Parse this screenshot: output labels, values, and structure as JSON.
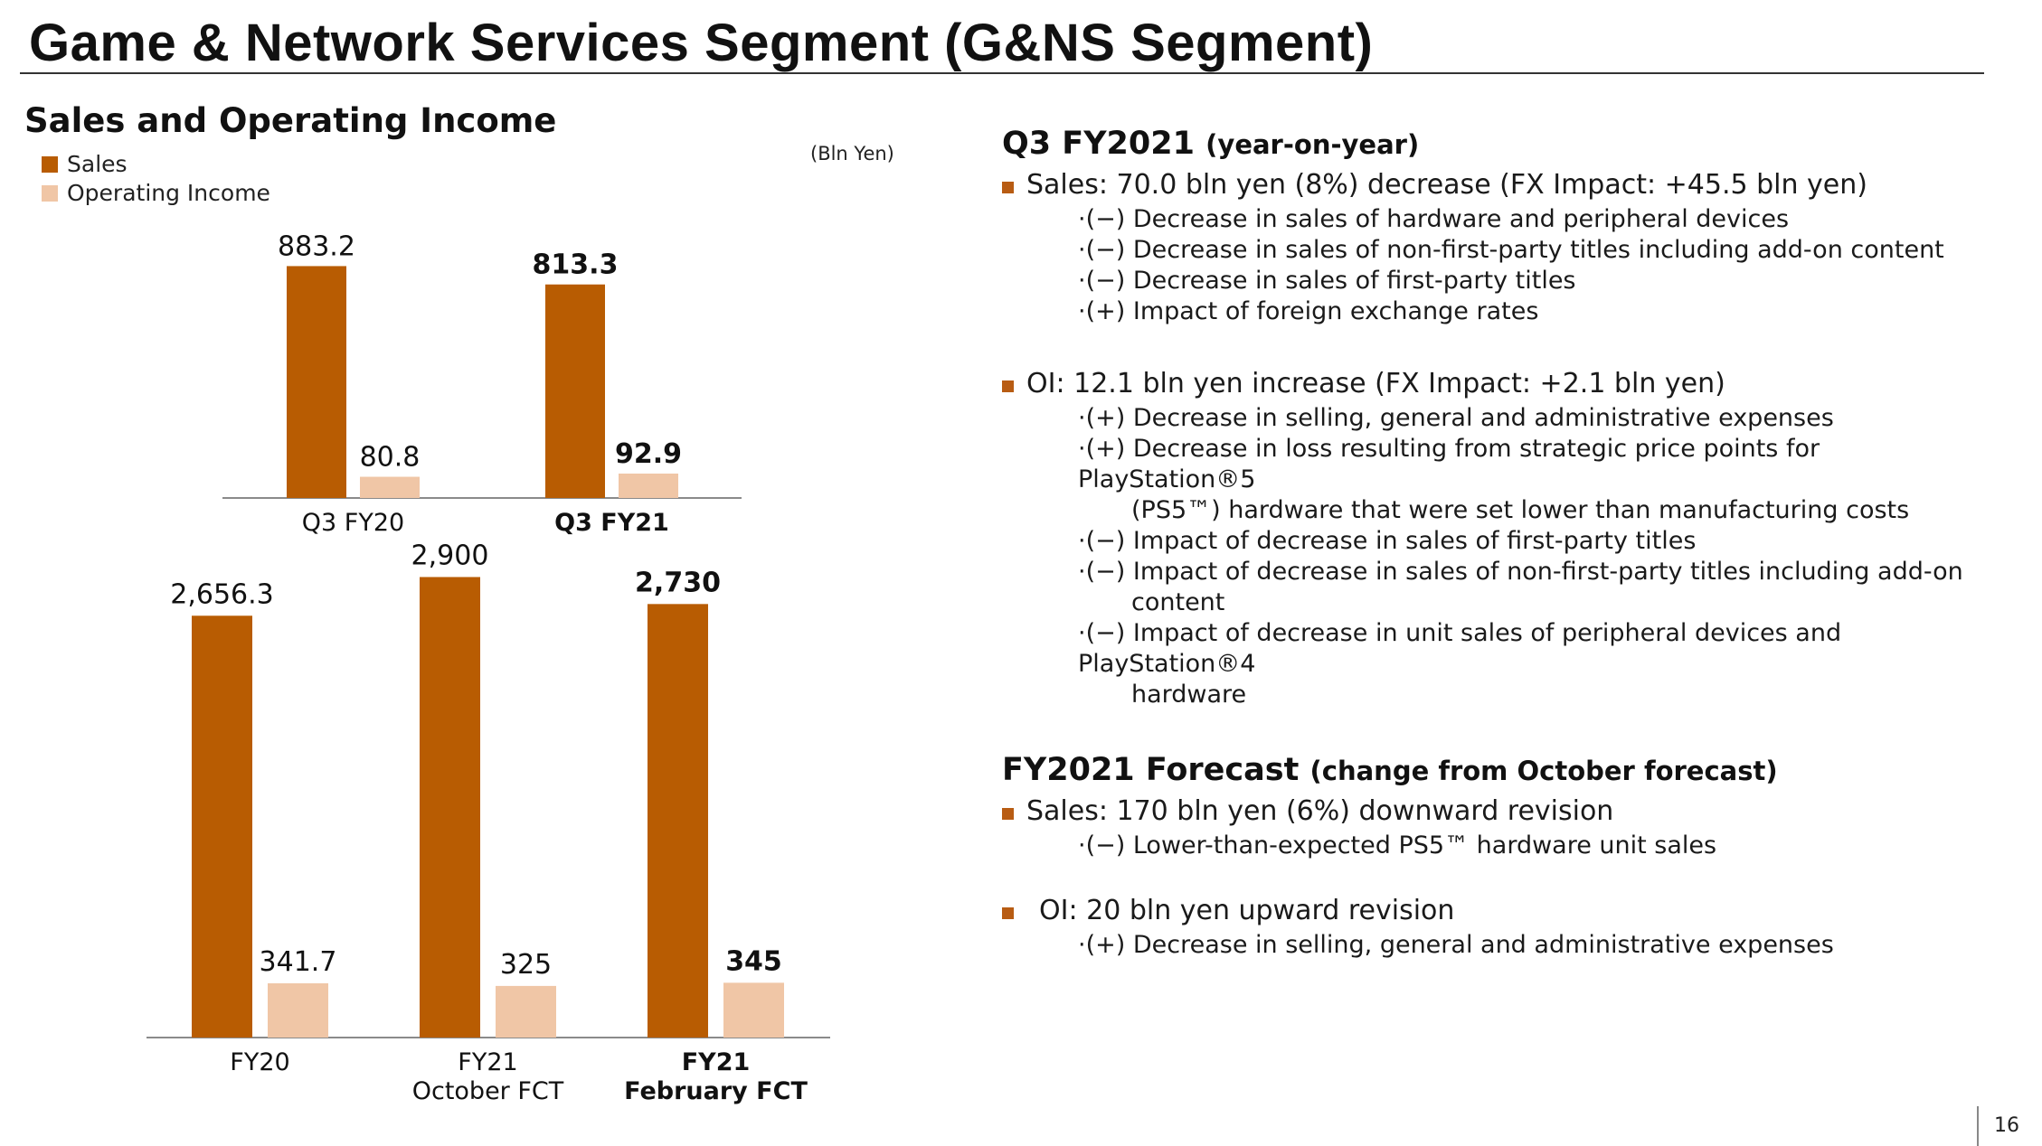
{
  "header": {
    "title": "Game & Network Services Segment (G&NS Segment)",
    "subtitle": "Sales and Operating Income",
    "unit": "(Bln Yen)"
  },
  "legend": [
    {
      "label": "Sales",
      "color": "#b85c02"
    },
    {
      "label": "Operating Income",
      "color": "#f0c6a6"
    }
  ],
  "chart_data": [
    {
      "type": "bar",
      "categories": [
        "Q3 FY20",
        "Q3 FY21"
      ],
      "series": [
        {
          "name": "Sales",
          "values": [
            883.2,
            813.3
          ],
          "labels": [
            "883.2",
            "813.3"
          ]
        },
        {
          "name": "Operating Income",
          "values": [
            80.8,
            92.9
          ],
          "labels": [
            "80.8",
            "92.9"
          ]
        }
      ],
      "highlight_category": 1
    },
    {
      "type": "bar",
      "categories": [
        [
          "FY20"
        ],
        [
          "FY21",
          "October FCT"
        ],
        [
          "FY21",
          "February FCT"
        ]
      ],
      "series": [
        {
          "name": "Sales",
          "values": [
            2656.3,
            2900,
            2730
          ],
          "labels": [
            "2,656.3",
            "2,900",
            "2,730"
          ]
        },
        {
          "name": "Operating Income",
          "values": [
            341.7,
            325,
            345
          ],
          "labels": [
            "341.7",
            "325",
            "345"
          ]
        }
      ],
      "highlight_category": 2
    }
  ],
  "q3": {
    "heading": "Q3 FY2021",
    "heading_paren": "(year-on-year)",
    "sales": {
      "text": "Sales: 70.0 bln yen (8%) decrease (FX Impact: +45.5 bln yen)",
      "items": [
        "·(−) Decrease in sales of hardware and peripheral devices",
        "·(−) Decrease in sales of non-first-party titles including add-on content",
        "·(−) Decrease in sales of first-party titles",
        "·(+) Impact of foreign exchange rates"
      ]
    },
    "oi": {
      "text": "OI: 12.1 bln yen increase (FX Impact: +2.1 bln yen)",
      "items": [
        "·(+) Decrease in selling, general and administrative expenses",
        "·(+) Decrease in loss resulting from strategic price points for PlayStation®5",
        "(PS5™)  hardware that were set lower than manufacturing costs",
        "·(−) Impact of decrease in sales of first-party titles",
        "·(−) Impact of decrease in sales of non-first-party titles including add-on",
        "content",
        "·(−) Impact of decrease in unit sales of peripheral devices and PlayStation®4",
        "hardware"
      ]
    }
  },
  "fy": {
    "heading": "FY2021 Forecast",
    "heading_paren": "(change from October forecast)",
    "sales": {
      "text": "Sales: 170 bln yen (6%) downward revision",
      "items": [
        "·(−) Lower-than-expected PS5™ hardware unit sales"
      ]
    },
    "oi": {
      "text": "OI: 20 bln yen upward revision",
      "items": [
        "·(+) Decrease in selling, general and administrative expenses"
      ]
    }
  },
  "page_number": "16"
}
